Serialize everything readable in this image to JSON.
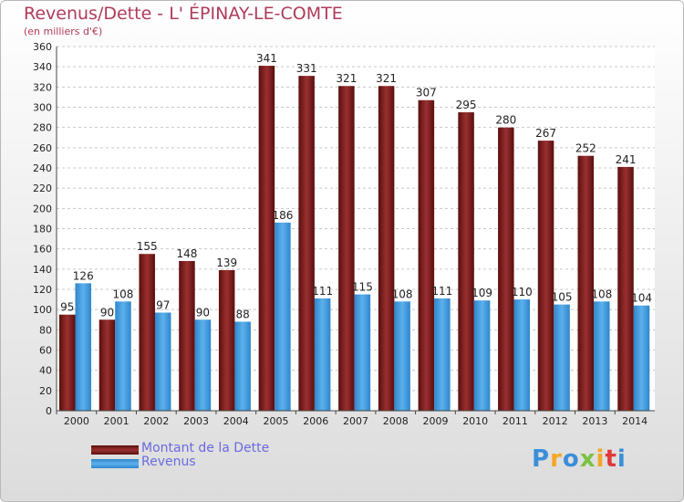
{
  "chart_data": {
    "type": "bar",
    "title": "Revenus/Dette - L' ÉPINAY-LE-COMTE",
    "subtitle": "(en milliers d'€)",
    "categories": [
      "2000",
      "2001",
      "2002",
      "2003",
      "2004",
      "2005",
      "2006",
      "2007",
      "2008",
      "2009",
      "2010",
      "2011",
      "2012",
      "2013",
      "2014"
    ],
    "series": [
      {
        "name": "Montant de la Dette",
        "color": "#7f1f1f",
        "values": [
          95,
          90,
          155,
          148,
          139,
          341,
          331,
          321,
          321,
          307,
          295,
          280,
          267,
          252,
          241
        ]
      },
      {
        "name": "Revenus",
        "color": "#3d96da",
        "values": [
          126,
          108,
          97,
          90,
          88,
          186,
          111,
          115,
          108,
          111,
          109,
          110,
          105,
          108,
          104
        ]
      }
    ],
    "ylim": [
      0,
      360
    ],
    "ytick_step": 20,
    "grid": true,
    "legend": "bottom-left"
  },
  "brand": {
    "logo": "Proxiti",
    "logo_colors": [
      "#3a8fd8",
      "#f5a623",
      "#3a8fd8",
      "#7cc242",
      "#f5a623",
      "#e03a3a",
      "#3a8fd8"
    ]
  }
}
